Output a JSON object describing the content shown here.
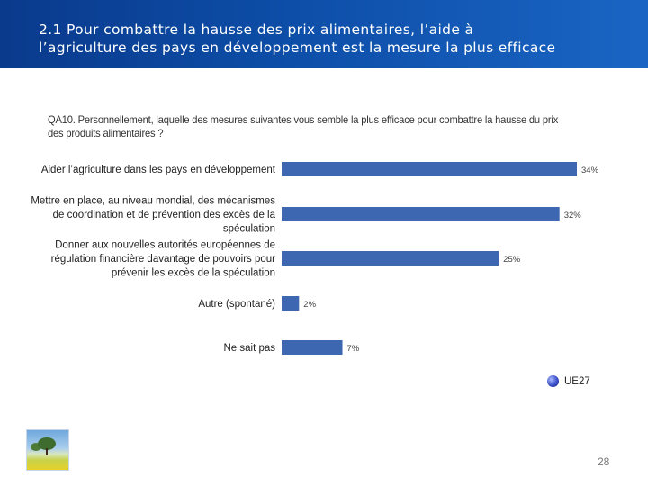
{
  "header": {
    "title": "2.1 Pour combattre la hausse des prix alimentaires, l’aide à\nl’agriculture des pays en développement est la mesure la plus efficace"
  },
  "question": {
    "text": "QA10. Personnellement, laquelle des mesures suivantes vous semble la plus efficace pour combattre la hausse du prix\ndes produits alimentaires ?"
  },
  "chart_data": {
    "type": "bar",
    "orientation": "horizontal",
    "title": "",
    "xlabel": "",
    "ylabel": "",
    "xlim": [
      0,
      34
    ],
    "value_suffix": "%",
    "categories": [
      "Aider l’agriculture dans les pays en développement",
      "Mettre en place, au niveau mondial, des mécanismes de coordination et de prévention des excès de la spéculation",
      "Donner aux nouvelles autorités européennes de régulation financière davantage de pouvoirs pour prévenir les excès de la spéculation",
      "Autre (spontané)",
      "Ne sait pas"
    ],
    "category_lines": [
      [
        "Aider l’agriculture dans les pays en développement"
      ],
      [
        "Mettre en place, au niveau mondial, des mécanismes",
        "de coordination et de prévention des excès de la",
        "spéculation"
      ],
      [
        "Donner aux nouvelles autorités européennes de",
        "régulation financière davantage de pouvoirs pour",
        "prévenir les excès de la spéculation"
      ],
      [
        "Autre (spontané)"
      ],
      [
        "Ne sait pas"
      ]
    ],
    "series": [
      {
        "name": "UE27",
        "values": [
          34,
          32,
          25,
          2,
          7
        ]
      }
    ],
    "value_labels": [
      "34%",
      "32%",
      "25%",
      "2%",
      "7%"
    ],
    "bar_color": "#3d67b1",
    "legend": {
      "label": "UE27",
      "position": "bottom-right"
    }
  },
  "footer": {
    "page_number": "28"
  }
}
